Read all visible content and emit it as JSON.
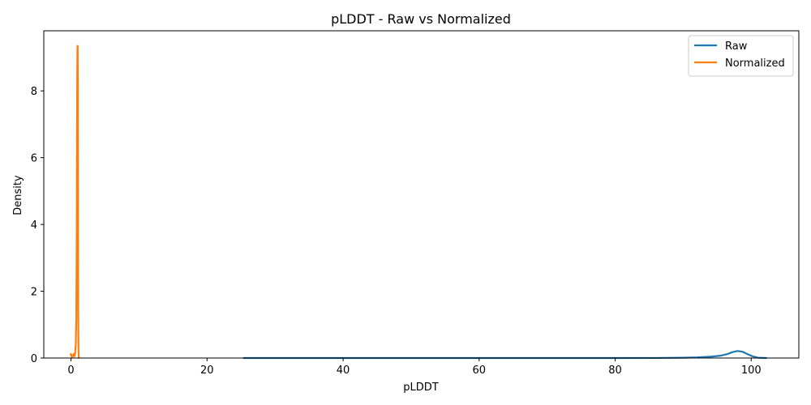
{
  "chart_data": {
    "type": "line",
    "title": "pLDDT - Raw vs Normalized",
    "xlabel": "pLDDT",
    "ylabel": "Density",
    "xlim": [
      -4,
      107
    ],
    "ylim": [
      0,
      9.8
    ],
    "x_ticks": [
      0,
      20,
      40,
      60,
      80,
      100
    ],
    "y_ticks": [
      0,
      2,
      4,
      6,
      8
    ],
    "grid": false,
    "legend_position": "top-right",
    "series": [
      {
        "name": "Raw",
        "color": "#1f77b4",
        "points": [
          [
            25.4,
            0.0
          ],
          [
            40,
            0.0
          ],
          [
            60,
            0.0
          ],
          [
            80,
            0.0
          ],
          [
            86,
            0.002
          ],
          [
            90,
            0.01
          ],
          [
            92,
            0.02
          ],
          [
            94,
            0.04
          ],
          [
            95.5,
            0.07
          ],
          [
            96.5,
            0.12
          ],
          [
            97.3,
            0.18
          ],
          [
            98.0,
            0.21
          ],
          [
            98.7,
            0.19
          ],
          [
            99.4,
            0.12
          ],
          [
            100.2,
            0.05
          ],
          [
            101.0,
            0.01
          ],
          [
            102.2,
            0.0
          ]
        ]
      },
      {
        "name": "Normalized",
        "color": "#ff7f0e",
        "points": [
          [
            -0.05,
            0.1
          ],
          [
            0.0,
            0.12
          ],
          [
            0.15,
            0.02
          ],
          [
            0.3,
            0.08
          ],
          [
            0.4,
            0.12
          ],
          [
            0.5,
            0.05
          ],
          [
            0.6,
            0.15
          ],
          [
            0.7,
            0.4
          ],
          [
            0.78,
            1.2
          ],
          [
            0.84,
            3.5
          ],
          [
            0.88,
            6.5
          ],
          [
            0.92,
            8.6
          ],
          [
            0.95,
            9.3
          ],
          [
            0.98,
            9.35
          ],
          [
            1.0,
            8.5
          ],
          [
            1.03,
            5.0
          ],
          [
            1.06,
            1.5
          ],
          [
            1.1,
            0.2
          ],
          [
            1.15,
            0.0
          ]
        ]
      }
    ]
  }
}
